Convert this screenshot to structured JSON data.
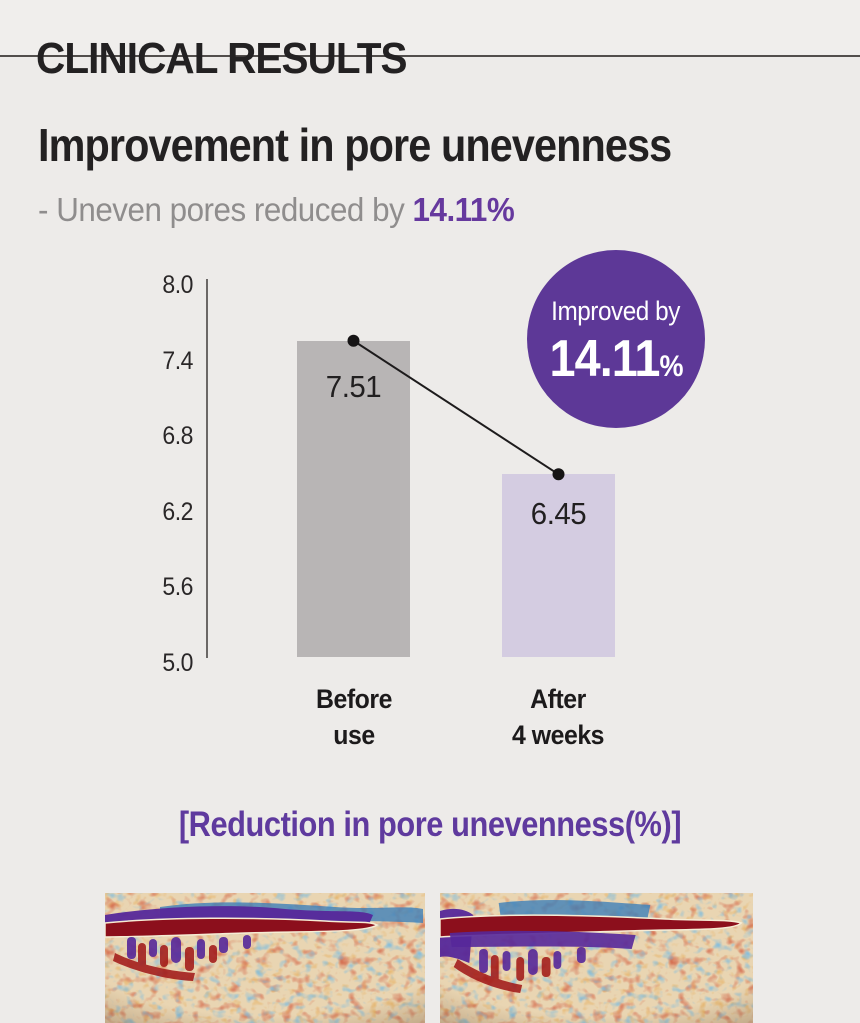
{
  "header": {
    "title": "CLINICAL RESULTS"
  },
  "section": {
    "title": "Improvement in pore unevenness",
    "subtitle_prefix": "- Uneven pores reduced by ",
    "subtitle_value": "14.11%"
  },
  "badge": {
    "label": "Improved by",
    "value": "14.11",
    "unit": "%"
  },
  "chart_data": {
    "type": "bar",
    "categories": [
      "Before use",
      "After 4 weeks"
    ],
    "values": [
      7.51,
      6.45
    ],
    "bar_labels": [
      "7.51",
      "6.45"
    ],
    "bar_colors": [
      "#b8b5b5",
      "#d4cce1"
    ],
    "ylim": [
      5.0,
      8.0
    ],
    "yticks": [
      8.0,
      7.4,
      6.8,
      6.2,
      5.6,
      5.0
    ],
    "ytick_labels": [
      "8.0",
      "7.4",
      "6.8",
      "6.2",
      "5.6",
      "5.0"
    ],
    "grid": false,
    "legend": false,
    "trend_connector": true,
    "annotation": "Improved by 14.11%",
    "title": "",
    "xlabel": "",
    "ylabel": ""
  },
  "x_axis": {
    "before_line1": "Before",
    "before_line2": "use",
    "after_line1": "After",
    "after_line2": "4 weeks"
  },
  "caption": "[Reduction in pore unevenness(%)]",
  "colors": {
    "background": "#edebe9",
    "text": "#232122",
    "muted": "#8f8d8d",
    "accent": "#66399e",
    "badge_bg": "#5d3897",
    "bar_before": "#b8b5b5",
    "bar_after": "#d4cce1"
  }
}
